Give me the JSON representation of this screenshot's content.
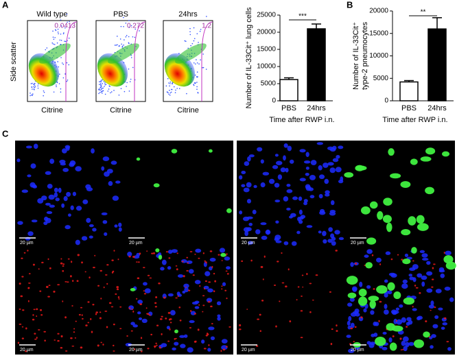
{
  "panels": {
    "a": "A",
    "b": "B",
    "c": "C"
  },
  "flow": {
    "ylabel": "Side scatter",
    "xlabel": "Citrine",
    "plots": [
      {
        "title": "Wild type",
        "gate": "0.0413"
      },
      {
        "title": "PBS",
        "gate": "0.272"
      },
      {
        "title": "24hrs",
        "gate": "1.2"
      }
    ]
  },
  "chart_data": [
    {
      "type": "bar",
      "ylabel": [
        "Number of IL-33Cit⁺ lung cells"
      ],
      "xlabel": "Time after RWP i.n.",
      "categories": [
        "PBS",
        "24hrs"
      ],
      "values": [
        6200,
        21000
      ],
      "errors": [
        500,
        1400
      ],
      "colors": [
        "#ffffff",
        "#000000"
      ],
      "ylim": [
        0,
        25000
      ],
      "yticks": [
        0,
        5000,
        10000,
        15000,
        20000,
        25000
      ],
      "significance": "***"
    },
    {
      "type": "bar",
      "ylabel": [
        "Number of IL-33Cit⁺",
        "type-2 pneumocytes"
      ],
      "xlabel": "Time after RWP i.n.",
      "categories": [
        "PBS",
        "24hrs"
      ],
      "values": [
        4200,
        16000
      ],
      "errors": [
        300,
        2500
      ],
      "colors": [
        "#ffffff",
        "#000000"
      ],
      "ylim": [
        0,
        20000
      ],
      "yticks": [
        0,
        5000,
        10000,
        15000,
        20000
      ],
      "significance": "**"
    }
  ],
  "microscopy": {
    "scale_bar": "20 µm"
  }
}
